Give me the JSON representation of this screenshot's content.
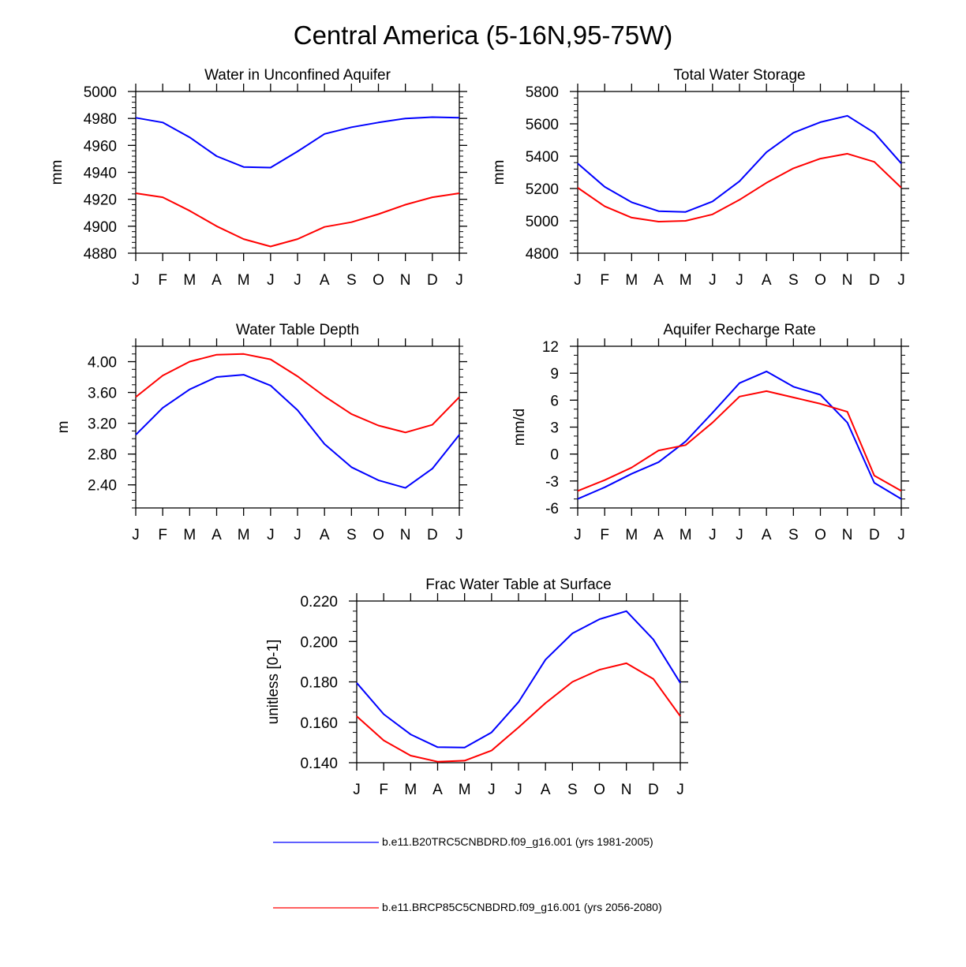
{
  "title": "Central America (5-16N,95-75W)",
  "colors": {
    "series1": "#0000ff",
    "series2": "#ff0000",
    "axis": "#000000"
  },
  "legend": [
    {
      "label": "b.e11.B20TRC5CNBDRD.f09_g16.001 (yrs 1981-2005)",
      "color": "#0000ff"
    },
    {
      "label": "b.e11.BRCP85C5CNBDRD.f09_g16.001 (yrs 2056-2080)",
      "color": "#ff0000"
    }
  ],
  "chart_data": [
    {
      "type": "line",
      "title": "Water in Unconfined Aquifer",
      "ylabel": "mm",
      "categories": [
        "J",
        "F",
        "M",
        "A",
        "M",
        "J",
        "J",
        "A",
        "S",
        "O",
        "N",
        "D",
        "J"
      ],
      "ylim": [
        4880,
        5000
      ],
      "yticks": [
        4880,
        4900,
        4920,
        4940,
        4960,
        4980,
        5000
      ],
      "ytick_labels": [
        "4880",
        "4900",
        "4920",
        "4940",
        "4960",
        "4980",
        "5000"
      ],
      "yminor": 5,
      "series": [
        {
          "name": "b.e11.B20TRC5CNBDRD.f09_g16.001 (yrs 1981-2005)",
          "values": [
            4980.5,
            4977,
            4966,
            4952,
            4944,
            4943.5,
            4955.5,
            4968.5,
            4973.5,
            4977,
            4980,
            4981,
            4980.5
          ]
        },
        {
          "name": "b.e11.BRCP85C5CNBDRD.f09_g16.001 (yrs 2056-2080)",
          "values": [
            4924.5,
            4921.5,
            4911.5,
            4900,
            4890.5,
            4885,
            4890.5,
            4899.5,
            4903,
            4909,
            4916,
            4921.5,
            4924.5
          ]
        }
      ]
    },
    {
      "type": "line",
      "title": "Total Water Storage",
      "ylabel": "mm",
      "categories": [
        "J",
        "F",
        "M",
        "A",
        "M",
        "J",
        "J",
        "A",
        "S",
        "O",
        "N",
        "D",
        "J"
      ],
      "ylim": [
        4800,
        5800
      ],
      "yticks": [
        4800,
        5000,
        5200,
        5400,
        5600,
        5800
      ],
      "ytick_labels": [
        "4800",
        "5000",
        "5200",
        "5400",
        "5600",
        "5800"
      ],
      "yminor": 5,
      "series": [
        {
          "name": "b.e11.B20TRC5CNBDRD.f09_g16.001 (yrs 1981-2005)",
          "values": [
            5355,
            5210,
            5115,
            5060,
            5055,
            5120,
            5245,
            5425,
            5545,
            5610,
            5650,
            5545,
            5355
          ]
        },
        {
          "name": "b.e11.BRCP85C5CNBDRD.f09_g16.001 (yrs 2056-2080)",
          "values": [
            5205,
            5090,
            5020,
            4995,
            5000,
            5040,
            5130,
            5235,
            5325,
            5385,
            5415,
            5365,
            5205
          ]
        }
      ]
    },
    {
      "type": "line",
      "title": "Water Table Depth",
      "ylabel": "m",
      "categories": [
        "J",
        "F",
        "M",
        "A",
        "M",
        "J",
        "J",
        "A",
        "S",
        "O",
        "N",
        "D",
        "J"
      ],
      "ylim": [
        2.1,
        4.2
      ],
      "yticks": [
        2.4,
        2.8,
        3.2,
        3.6,
        4.0
      ],
      "ytick_labels": [
        "2.40",
        "2.80",
        "3.20",
        "3.60",
        "4.00"
      ],
      "yminor": 4,
      "series": [
        {
          "name": "b.e11.B20TRC5CNBDRD.f09_g16.001 (yrs 1981-2005)",
          "values": [
            3.05,
            3.4,
            3.64,
            3.8,
            3.83,
            3.69,
            3.37,
            2.93,
            2.63,
            2.46,
            2.36,
            2.61,
            3.05
          ]
        },
        {
          "name": "b.e11.BRCP85C5CNBDRD.f09_g16.001 (yrs 2056-2080)",
          "values": [
            3.54,
            3.82,
            4.0,
            4.09,
            4.1,
            4.03,
            3.81,
            3.55,
            3.32,
            3.17,
            3.08,
            3.18,
            3.54
          ]
        }
      ]
    },
    {
      "type": "line",
      "title": "Aquifer Recharge Rate",
      "ylabel": "mm/d",
      "categories": [
        "J",
        "F",
        "M",
        "A",
        "M",
        "J",
        "J",
        "A",
        "S",
        "O",
        "N",
        "D",
        "J"
      ],
      "ylim": [
        -6,
        12
      ],
      "yticks": [
        -6,
        -3,
        0,
        3,
        6,
        9,
        12
      ],
      "ytick_labels": [
        "-6",
        "-3",
        "0",
        "3",
        "6",
        "9",
        "12"
      ],
      "yminor": 3,
      "series": [
        {
          "name": "b.e11.B20TRC5CNBDRD.f09_g16.001 (yrs 1981-2005)",
          "values": [
            -5.0,
            -3.7,
            -2.2,
            -0.9,
            1.4,
            4.6,
            7.9,
            9.2,
            7.5,
            6.6,
            3.5,
            -3.2,
            -5.0
          ]
        },
        {
          "name": "b.e11.BRCP85C5CNBDRD.f09_g16.001 (yrs 2056-2080)",
          "values": [
            -4.1,
            -2.9,
            -1.5,
            0.4,
            1.0,
            3.5,
            6.4,
            7.0,
            6.3,
            5.6,
            4.7,
            -2.4,
            -4.1
          ]
        }
      ]
    },
    {
      "type": "line",
      "title": "Frac Water Table at Surface",
      "ylabel": "unitless [0-1]",
      "categories": [
        "J",
        "F",
        "M",
        "A",
        "M",
        "J",
        "J",
        "A",
        "S",
        "O",
        "N",
        "D",
        "J"
      ],
      "ylim": [
        0.14,
        0.22
      ],
      "yticks": [
        0.14,
        0.16,
        0.18,
        0.2,
        0.22
      ],
      "ytick_labels": [
        "0.140",
        "0.160",
        "0.180",
        "0.200",
        "0.220"
      ],
      "yminor": 4,
      "series": [
        {
          "name": "b.e11.B20TRC5CNBDRD.f09_g16.001 (yrs 1981-2005)",
          "values": [
            0.1795,
            0.164,
            0.154,
            0.1477,
            0.1475,
            0.155,
            0.17,
            0.191,
            0.204,
            0.211,
            0.215,
            0.201,
            0.1795
          ]
        },
        {
          "name": "b.e11.BRCP85C5CNBDRD.f09_g16.001 (yrs 2056-2080)",
          "values": [
            0.163,
            0.151,
            0.1435,
            0.1405,
            0.141,
            0.146,
            0.1575,
            0.1695,
            0.18,
            0.186,
            0.1892,
            0.1815,
            0.163
          ]
        }
      ]
    }
  ]
}
